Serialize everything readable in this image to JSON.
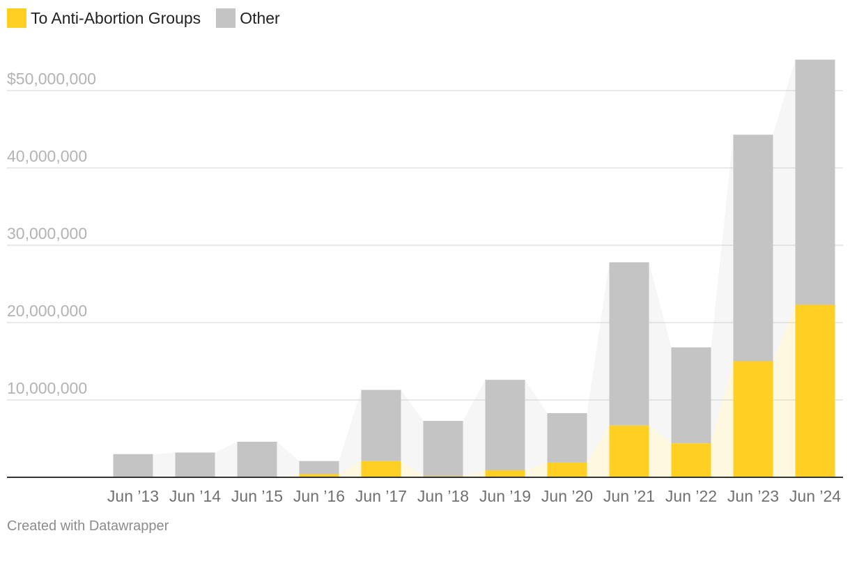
{
  "legend": [
    {
      "label": "To Anti-Abortion Groups",
      "color": "#ffcf24"
    },
    {
      "label": "Other",
      "color": "#c4c4c4"
    }
  ],
  "footer": "Created with Datawrapper",
  "chart_data": {
    "type": "bar",
    "stacked": true,
    "categories": [
      "Jun ’13",
      "Jun ’14",
      "Jun ’15",
      "Jun ’16",
      "Jun ’17",
      "Jun ’18",
      "Jun ’19",
      "Jun ’20",
      "Jun ’21",
      "Jun ’22",
      "Jun ’23",
      "Jun ’24"
    ],
    "series": [
      {
        "name": "To Anti-Abortion Groups",
        "color": "#ffcf24",
        "values": [
          0,
          0,
          0,
          400000,
          2100000,
          150000,
          900000,
          1900000,
          6700000,
          4400000,
          15000000,
          22300000
        ]
      },
      {
        "name": "Other",
        "color": "#c4c4c4",
        "values": [
          3000000,
          3200000,
          4600000,
          1700000,
          9200000,
          7150000,
          11700000,
          6400000,
          21100000,
          12400000,
          29300000,
          31700000
        ]
      }
    ],
    "y_ticks": [
      {
        "value": 10000000,
        "label": "10,000,000"
      },
      {
        "value": 20000000,
        "label": "20,000,000"
      },
      {
        "value": 30000000,
        "label": "30,000,000"
      },
      {
        "value": 40000000,
        "label": "40,000,000"
      },
      {
        "value": 50000000,
        "label": "$50,000,000"
      }
    ],
    "ylim": [
      0,
      54000000
    ],
    "grid": true,
    "legend_position": "top-left",
    "connector_areas": true
  }
}
